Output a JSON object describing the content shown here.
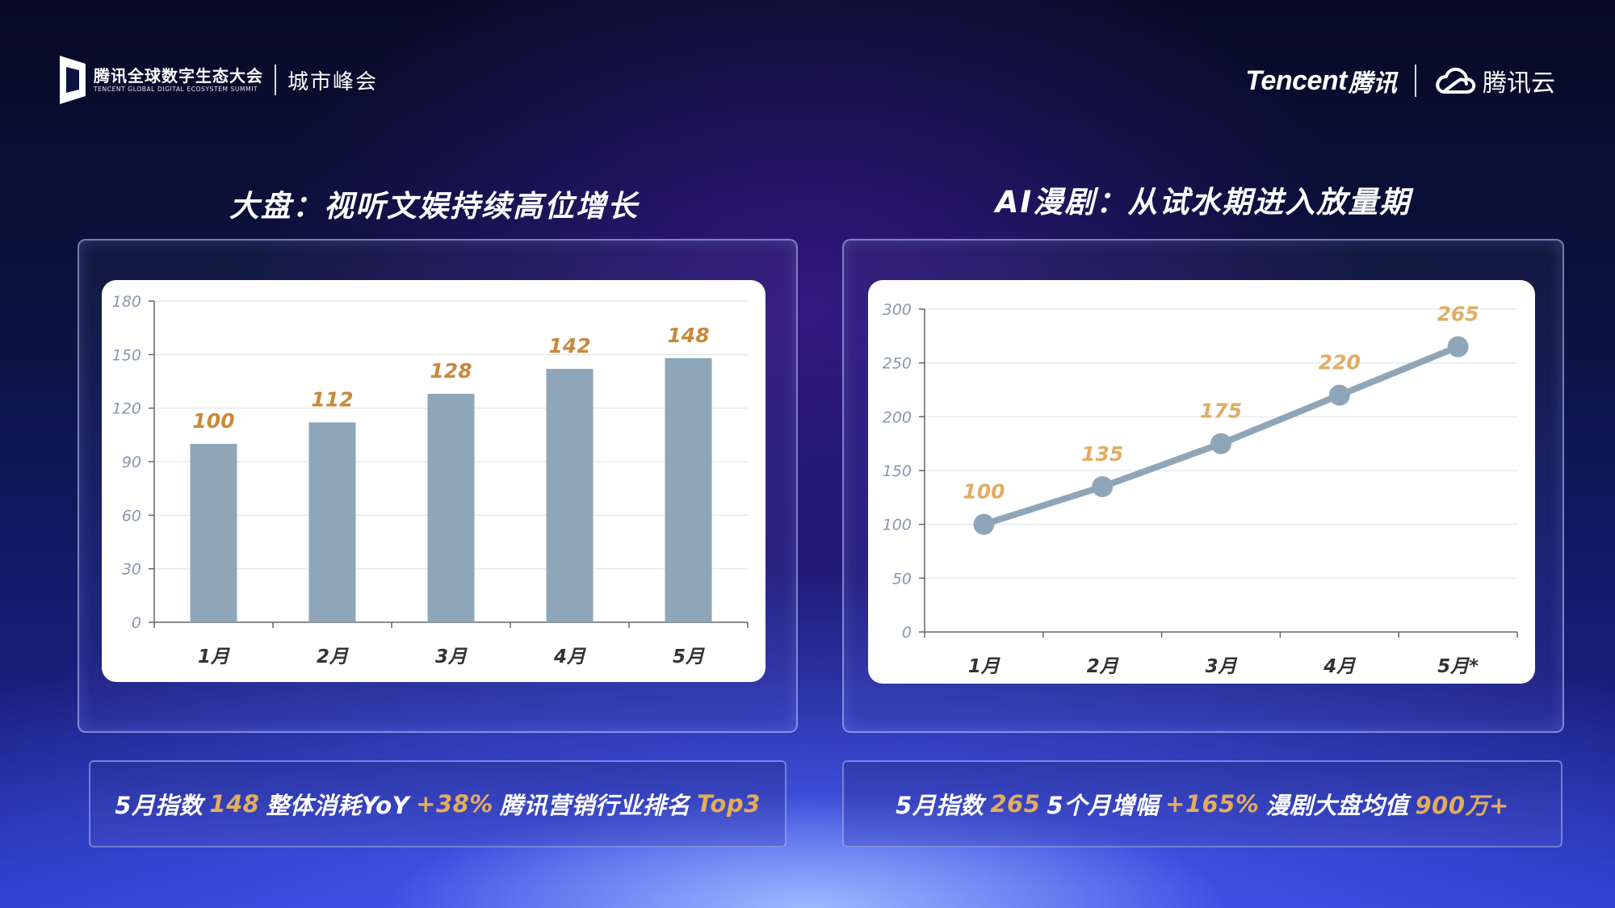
{
  "header": {
    "summit_cn": "腾讯全球数字生态大会",
    "summit_en": "TENCENT GLOBAL DIGITAL ECOSYSTEM SUMMIT",
    "city": "城市峰会",
    "brand_en": "Tencent",
    "brand_cn": "腾讯",
    "cloud_cn": "腾讯云"
  },
  "left_panel": {
    "title": "大盘：视听文娱持续高位增长",
    "footer": {
      "p1": "5月指数",
      "v1": "148",
      "p2": "整体消耗YoY",
      "v2": "+38%",
      "p3": "腾讯营销行业排名",
      "v3": "Top3"
    }
  },
  "right_panel": {
    "title": "AI漫剧：从试水期进入放量期",
    "footer": {
      "p1": "5月指数",
      "v1": "265",
      "p2": "5个月增幅",
      "v2": "+165%",
      "p3": "漫剧大盘均值",
      "v3": "900万+"
    }
  },
  "colors": {
    "bar": "#8fa5b8",
    "line": "#8fa5b8",
    "label": "#c9893a",
    "label_line": "#e0ad63",
    "highlight": "#e3ad5c",
    "axis_text": "#8a96ad",
    "tick_text": "#333333"
  },
  "chart_data": [
    {
      "type": "bar",
      "categories": [
        "1月",
        "2月",
        "3月",
        "4月",
        "5月"
      ],
      "values": [
        100,
        112,
        128,
        142,
        148
      ],
      "yticks": [
        0,
        30,
        60,
        90,
        120,
        150,
        180
      ],
      "ylim": [
        0,
        180
      ],
      "grid": true,
      "data_labels": true
    },
    {
      "type": "line",
      "categories": [
        "1月",
        "2月",
        "3月",
        "4月",
        "5月*"
      ],
      "values": [
        100,
        135,
        175,
        220,
        265
      ],
      "yticks": [
        0,
        50,
        100,
        150,
        200,
        250,
        300
      ],
      "ylim": [
        0,
        300
      ],
      "grid": true,
      "data_labels": true,
      "markers": true
    }
  ]
}
